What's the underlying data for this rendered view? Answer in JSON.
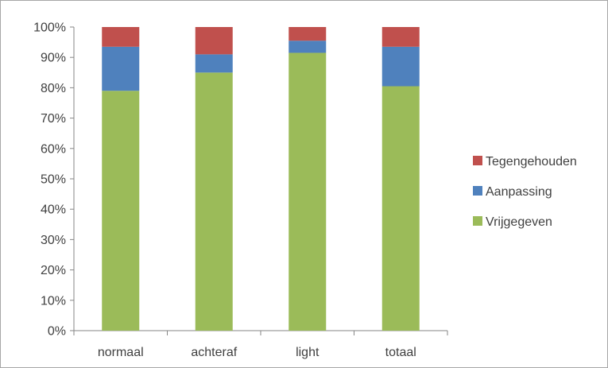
{
  "chart_data": {
    "type": "bar",
    "stacked": true,
    "percent_stacked": true,
    "title": "",
    "xlabel": "",
    "ylabel": "",
    "categories": [
      "normaal",
      "achteraf",
      "light",
      "totaal"
    ],
    "series": [
      {
        "name": "Vrijgegeven",
        "values": [
          79,
          85,
          91.5,
          80.5
        ],
        "color": "#9bbb59"
      },
      {
        "name": "Aanpassing",
        "values": [
          14.5,
          6,
          4,
          13
        ],
        "color": "#4f81bd"
      },
      {
        "name": "Tegengehouden",
        "values": [
          6.5,
          9,
          4.5,
          6.5
        ],
        "color": "#c0504d"
      }
    ],
    "ylim": [
      0,
      100
    ],
    "yticks": [
      "0%",
      "10%",
      "20%",
      "30%",
      "40%",
      "50%",
      "60%",
      "70%",
      "80%",
      "90%",
      "100%"
    ],
    "grid": false,
    "legend_position": "right",
    "legend_order": [
      "Tegengehouden",
      "Aanpassing",
      "Vrijgegeven"
    ]
  }
}
